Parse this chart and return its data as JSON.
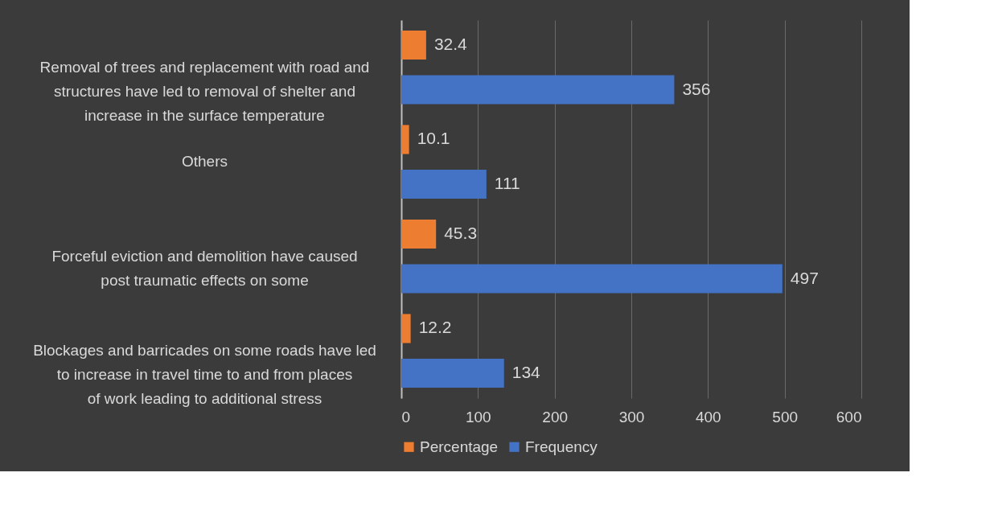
{
  "chart_data": {
    "type": "bar",
    "orientation": "horizontal",
    "categories": [
      "Removal of trees and replacement with road and structures have led to removal of shelter and increase in the surface temperature",
      "Others",
      "Forceful eviction and demolition have caused post traumatic effects on some",
      "Blockages and barricades on some roads have led to increase in travel time to and from places of work leading to additional stress"
    ],
    "series": [
      {
        "name": "Percentage",
        "color": "#ed7d31",
        "values": [
          32.4,
          10.1,
          45.3,
          12.2
        ]
      },
      {
        "name": "Frequency",
        "color": "#4472c4",
        "values": [
          356,
          111,
          497,
          134
        ]
      }
    ],
    "xlim": [
      0,
      600
    ],
    "xticks": [
      0,
      100,
      200,
      300,
      400,
      500,
      600
    ],
    "grid": "x",
    "legend": "bottom",
    "data_labels": true
  }
}
